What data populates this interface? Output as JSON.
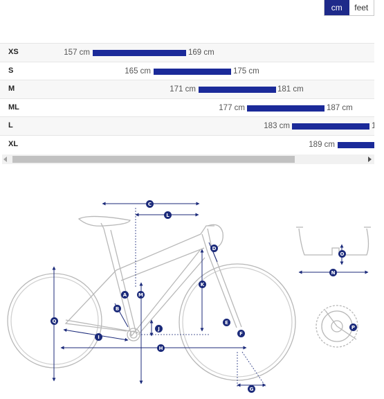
{
  "units": {
    "cm": "cm",
    "feet": "feet",
    "selected": "cm"
  },
  "unit_cm": "cm",
  "size_chart": {
    "accent": "#1b2a99",
    "rows": [
      {
        "size": "XS",
        "min": "157 cm",
        "max": "169 cm"
      },
      {
        "size": "S",
        "min": "165 cm",
        "max": "175 cm"
      },
      {
        "size": "M",
        "min": "171 cm",
        "max": "181 cm"
      },
      {
        "size": "ML",
        "min": "177 cm",
        "max": "187 cm"
      },
      {
        "size": "L",
        "min": "183 cm",
        "max": "1"
      },
      {
        "size": "XL",
        "min": "189 cm",
        "max": ""
      }
    ]
  },
  "geometry_labels": [
    "A",
    "B",
    "C",
    "D",
    "E",
    "F",
    "G",
    "H",
    "I",
    "J",
    "K",
    "L",
    "M",
    "N",
    "O",
    "P",
    "Q"
  ]
}
